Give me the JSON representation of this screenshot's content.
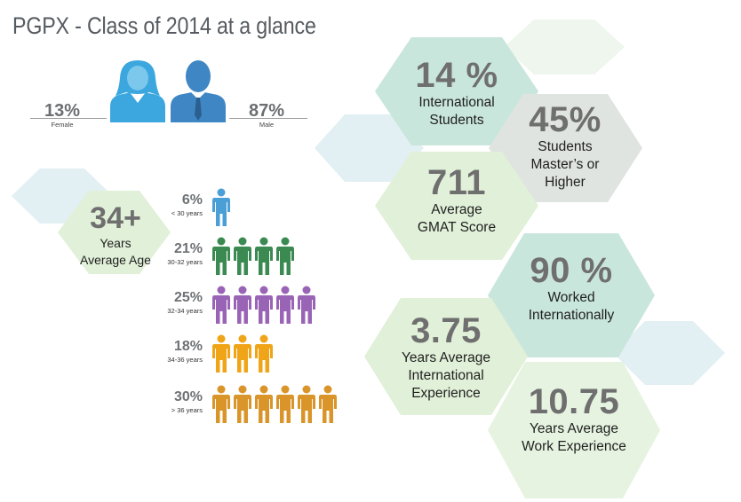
{
  "title": "PGPX - Class of 2014 at a glance",
  "gender": {
    "female": {
      "percent": "13%",
      "label": "Female"
    },
    "male": {
      "percent": "87%",
      "label": "Male"
    }
  },
  "age": {
    "value": "34+",
    "label_lines": [
      "Years",
      "Average Age"
    ]
  },
  "chart_data": {
    "type": "table",
    "title": "PGPX - Class of 2014 at a glance",
    "gender": [
      {
        "label": "Female",
        "percent": 13
      },
      {
        "label": "Male",
        "percent": 87
      }
    ],
    "average_age": "34+",
    "age_distribution": [
      {
        "percent": 6,
        "percent_label": "6%",
        "range": "< 30 years",
        "figures": 1,
        "color": "#4a9fd6"
      },
      {
        "percent": 21,
        "percent_label": "21%",
        "range": "30-32 years",
        "figures": 4,
        "color": "#3b8a52"
      },
      {
        "percent": 25,
        "percent_label": "25%",
        "range": "32-34 years",
        "figures": 5,
        "color": "#9a64b6"
      },
      {
        "percent": 18,
        "percent_label": "18%",
        "range": "34-36 years",
        "figures": 3,
        "color": "#f0a418"
      },
      {
        "percent": 30,
        "percent_label": "30%",
        "range": "> 36 years",
        "figures": 6,
        "color": "#d9952a"
      }
    ],
    "stats": [
      {
        "value": "14 %",
        "label_lines": [
          "International",
          "Students"
        ]
      },
      {
        "value": "45%",
        "label_lines": [
          "Students",
          "Master’s or",
          "Higher"
        ]
      },
      {
        "value": "711",
        "label_lines": [
          "Average",
          "GMAT Score"
        ]
      },
      {
        "value": "90 %",
        "label_lines": [
          "Worked",
          "Internationally"
        ]
      },
      {
        "value": "3.75",
        "label_lines": [
          "Years Average",
          "International",
          "Experience"
        ]
      },
      {
        "value": "10.75",
        "label_lines": [
          "Years Average",
          "Work Experience"
        ]
      }
    ]
  },
  "colors": {
    "title": "#555b60",
    "hex_green": "#dff0d8",
    "hex_teal": "#c9e6dc",
    "hex_gray": "#dfe4e0",
    "hex_blue": "#e2eff3",
    "hex_faint": "#eef6ee",
    "female_icon": "#3ba7de",
    "male_icon": "#3f87c4",
    "number_gray": "#6f6f6f"
  },
  "icons": [
    "female-avatar-icon",
    "male-avatar-icon",
    "person-icon"
  ]
}
